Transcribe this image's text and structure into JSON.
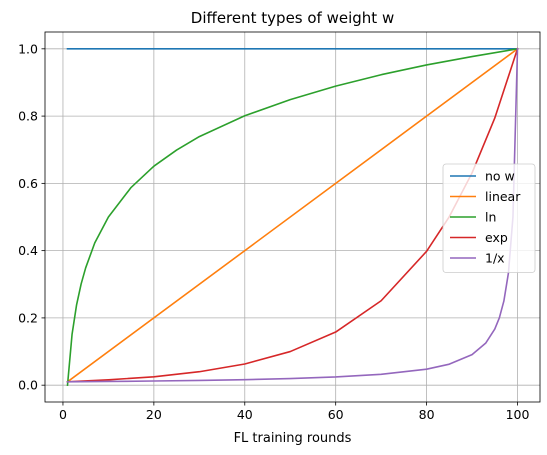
{
  "chart_data": {
    "type": "line",
    "title": "Different types of weight w",
    "xlabel": "FL training rounds",
    "ylabel": "",
    "xlim": [
      -3.95,
      104.95
    ],
    "ylim": [
      -0.05,
      1.05
    ],
    "xticks": [
      0,
      20,
      40,
      60,
      80,
      100
    ],
    "yticks": [
      0.0,
      0.2,
      0.4,
      0.6,
      0.8,
      1.0
    ],
    "xtick_labels": [
      "0",
      "20",
      "40",
      "60",
      "80",
      "100"
    ],
    "ytick_labels": [
      "0.0",
      "0.2",
      "0.4",
      "0.6",
      "0.8",
      "1.0"
    ],
    "grid": true,
    "legend_position": "center-right",
    "series": [
      {
        "name": "no w",
        "color": "#1f77b4",
        "x": [
          1,
          100
        ],
        "y": [
          1.0,
          1.0
        ]
      },
      {
        "name": "linear",
        "color": "#ff7f0e",
        "x": [
          1,
          100
        ],
        "y": [
          0.01,
          1.0
        ]
      },
      {
        "name": "ln",
        "color": "#2ca02c",
        "x": [
          1,
          2,
          3,
          4,
          5,
          7,
          10,
          15,
          20,
          25,
          30,
          40,
          50,
          60,
          70,
          80,
          90,
          100
        ],
        "y": [
          0.0,
          0.151,
          0.239,
          0.301,
          0.349,
          0.423,
          0.5,
          0.588,
          0.651,
          0.699,
          0.739,
          0.801,
          0.849,
          0.889,
          0.923,
          0.952,
          0.977,
          1.0
        ]
      },
      {
        "name": "exp",
        "color": "#d62728",
        "x": [
          1,
          10,
          20,
          30,
          40,
          50,
          60,
          70,
          80,
          85,
          90,
          95,
          100
        ],
        "y": [
          0.01,
          0.016,
          0.025,
          0.04,
          0.063,
          0.1,
          0.158,
          0.251,
          0.398,
          0.501,
          0.631,
          0.794,
          1.0
        ]
      },
      {
        "name": "1/x",
        "color": "#9467bd",
        "x": [
          1,
          10,
          20,
          30,
          40,
          50,
          60,
          70,
          80,
          85,
          90,
          93,
          95,
          96,
          97,
          98,
          99,
          100
        ],
        "y": [
          0.01,
          0.011,
          0.0124,
          0.0141,
          0.0164,
          0.0196,
          0.0244,
          0.0323,
          0.0476,
          0.0625,
          0.0909,
          0.125,
          0.1667,
          0.2,
          0.25,
          0.333,
          0.5,
          1.0
        ]
      }
    ]
  }
}
